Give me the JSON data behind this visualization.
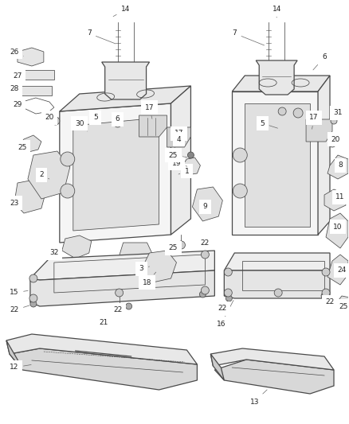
{
  "bg_color": "#ffffff",
  "line_color": "#4a4a4a",
  "label_color": "#222222",
  "lw_main": 0.9,
  "lw_thin": 0.55,
  "label_fs": 6.5,
  "fig_w": 4.38,
  "fig_h": 5.33,
  "dpi": 100
}
